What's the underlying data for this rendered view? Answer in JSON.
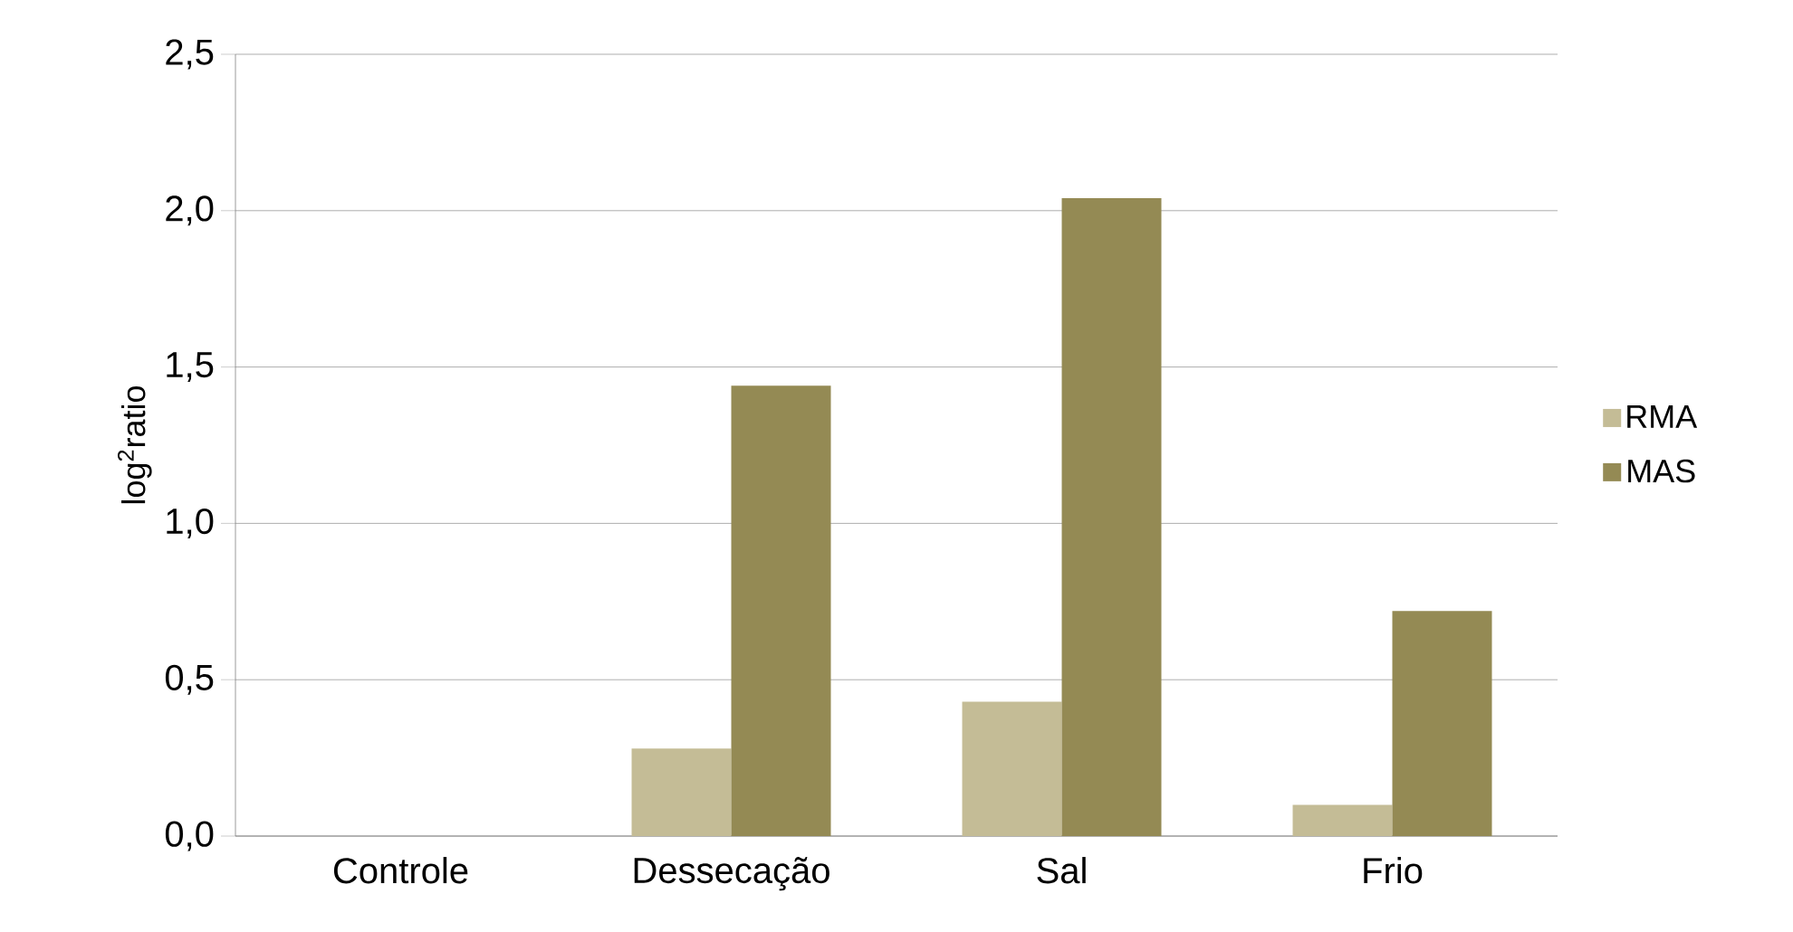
{
  "chart_data": {
    "type": "bar",
    "ylabel": "log$^{2}$ratio",
    "categories": [
      "Controle",
      "Dessecação",
      "Sal",
      "Frio"
    ],
    "series": [
      {
        "name": "RMA",
        "color": "#c4bc96",
        "values": [
          0,
          0.28,
          0.43,
          0.1
        ]
      },
      {
        "name": "MAS",
        "color": "#948a54",
        "values": [
          0,
          1.44,
          2.04,
          0.72
        ]
      }
    ],
    "ylim": [
      0,
      2.5
    ],
    "yticks": [
      {
        "value": 0,
        "label": "0,0"
      },
      {
        "value": 0.5,
        "label": "0,5"
      },
      {
        "value": 1,
        "label": "1,0"
      },
      {
        "value": 1.5,
        "label": "1,5"
      },
      {
        "value": 2,
        "label": "2,0"
      },
      {
        "value": 2.5,
        "label": "2,5"
      }
    ],
    "grid": "y",
    "legend": "right"
  }
}
